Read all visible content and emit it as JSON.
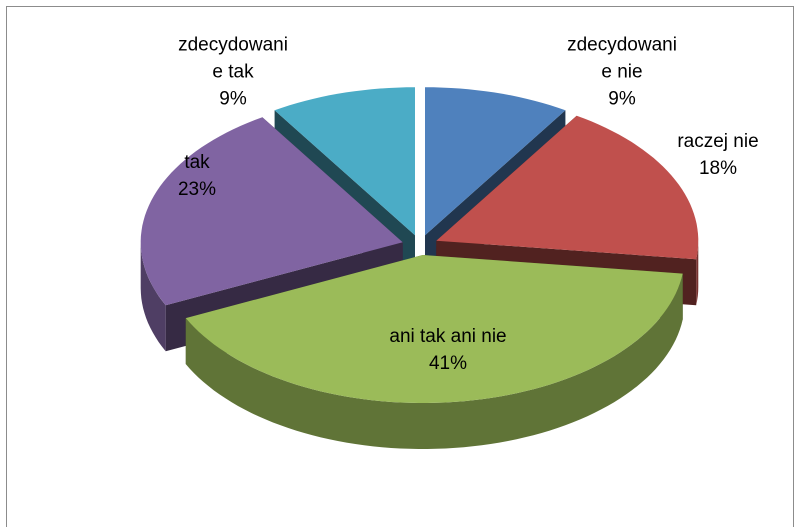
{
  "chart_data": {
    "type": "pie3d",
    "categories": [
      "zdecydowanie nie",
      "raczej nie",
      "ani tak ani nie",
      "tak",
      "zdecydowanie tak"
    ],
    "values": [
      9,
      18,
      41,
      23,
      9
    ],
    "value_labels": [
      "9%",
      "18%",
      "41%",
      "23%",
      "9%"
    ],
    "colors": [
      "#4f81bd",
      "#c0504d",
      "#9bbb59",
      "#8064a2",
      "#4bacc6"
    ]
  }
}
